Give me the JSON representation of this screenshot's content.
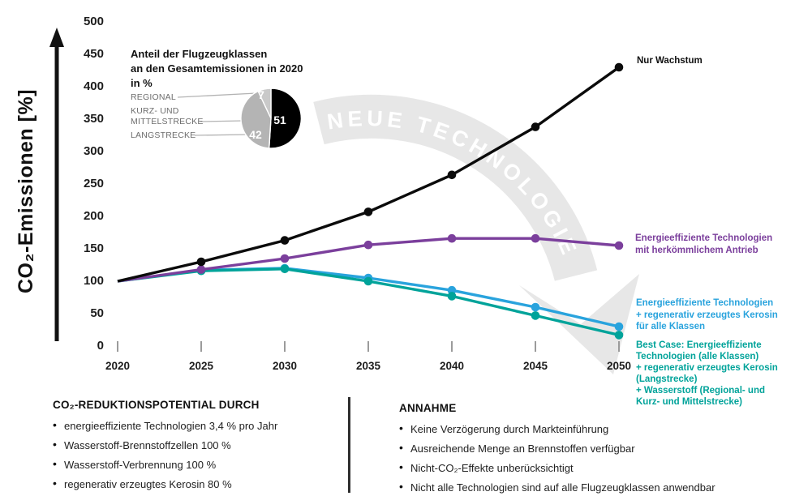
{
  "y_axis": {
    "title": "CO₂-Emissionen [%]",
    "ticks": [
      "500",
      "450",
      "400",
      "350",
      "300",
      "250",
      "200",
      "150",
      "100",
      "50",
      "0"
    ]
  },
  "x_axis": {
    "ticks": [
      "2020",
      "2025",
      "2030",
      "2035",
      "2040",
      "2045",
      "2050"
    ]
  },
  "watermark": {
    "text": "NEUE TECHNOLOGIE",
    "band_color": "#e7e7e7",
    "text_color": "#ffffff"
  },
  "inset": {
    "title": "Anteil der Flugzeugklassen\nan den Gesamtemissionen in 2020\nin %",
    "rows": [
      {
        "label": "REGIONAL",
        "value": 7,
        "color": "#c9c9c9"
      },
      {
        "label": "KURZ- UND\nMITTELSTRECKE",
        "value": 51,
        "color": "#000000"
      },
      {
        "label": "LANGSTRECKE",
        "value": 42,
        "color": "#b4b4b4"
      }
    ]
  },
  "legend": {
    "growth": {
      "text": "Nur Wachstum",
      "color": "#111111"
    },
    "efficient": {
      "text": "Energieeffiziente Technologien\nmit herkömmlichem Antrieb",
      "color": "#7b3f9c"
    },
    "kerosin": {
      "text": "Energieeffiziente Technologien\n+ regenerativ erzeugtes Kerosin\nfür alle Klassen",
      "color": "#29a3dd"
    },
    "best_case": {
      "text": "Best Case: Energieeffiziente\nTechnologien (alle Klassen)\n+ regenerativ erzeugtes Kerosin\n(Langstrecke)\n+ Wasserstoff (Regional- und\nKurz- und Mittelstrecke)",
      "color": "#00a39a"
    }
  },
  "chart_data": {
    "type": "line",
    "ylabel": "CO₂-Emissionen [%]",
    "ylim": [
      0,
      500
    ],
    "grid": false,
    "x": [
      2020,
      2025,
      2030,
      2035,
      2040,
      2045,
      2050
    ],
    "series": [
      {
        "name": "Nur Wachstum",
        "color": "#0b0b0b",
        "values": [
          100,
          130,
          163,
          207,
          264,
          338,
          430
        ]
      },
      {
        "name": "Energieeffiziente Technologien mit herkömmlichem Antrieb",
        "color": "#7b3f9c",
        "values": [
          100,
          118,
          135,
          156,
          166,
          166,
          155
        ]
      },
      {
        "name": "Energieeffiziente Technologien + regenerativ erzeugtes Kerosin für alle Klassen",
        "color": "#29a3dd",
        "values": [
          100,
          117,
          120,
          105,
          86,
          60,
          30
        ]
      },
      {
        "name": "Best Case: Energieeffiziente Technologien (alle Klassen) + regenerativ erzeugtes Kerosin (Langstrecke) + Wasserstoff (Regional- und Kurz- und Mittelstrecke)",
        "color": "#00a39a",
        "values": [
          100,
          116,
          119,
          100,
          77,
          47,
          17
        ]
      }
    ],
    "pie": {
      "title": "Anteil der Flugzeugklassen an den Gesamtemissionen in 2020 in %",
      "categories": [
        "REGIONAL",
        "KURZ- UND MITTELSTRECKE",
        "LANGSTRECKE"
      ],
      "values": [
        7,
        51,
        42
      ]
    }
  },
  "footer": {
    "left": {
      "heading": "CO₂-REDUKTIONSPOTENTIAL DURCH",
      "items": [
        "energieeffiziente Technologien 3,4 % pro Jahr",
        "Wasserstoff-Brennstoffzellen 100 %",
        "Wasserstoff-Verbrennung 100 %",
        "regenerativ erzeugtes Kerosin 80 %"
      ]
    },
    "right": {
      "heading": "ANNAHME",
      "items": [
        "Keine Verzögerung durch Markteinführung",
        "Ausreichende Menge an Brennstoffen verfügbar",
        "Nicht-CO₂-Effekte unberücksichtigt",
        "Nicht alle Technologien sind auf alle Flugzeugklassen anwendbar"
      ]
    }
  }
}
